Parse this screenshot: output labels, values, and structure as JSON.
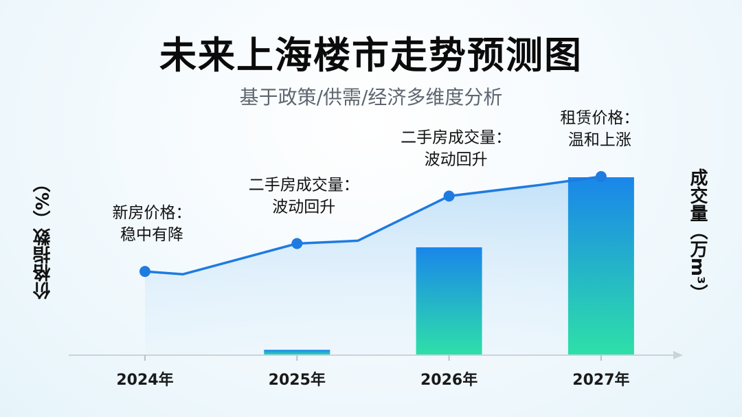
{
  "chart_data": {
    "type": "bar+line",
    "title": "未来上海楼市走势预测图",
    "subtitle": "基于政策/供需/经济多维度分析",
    "categories": [
      "2024年",
      "2025年",
      "2026年",
      "2027年"
    ],
    "ylabel_left": "价格指数（%）",
    "ylabel_right": "成交量（万m³）",
    "line": {
      "x": [
        0,
        0.25,
        1,
        1.4,
        2,
        2.6,
        3
      ],
      "values": [
        30,
        29,
        40,
        41,
        57,
        61,
        64
      ],
      "marker_indices": [
        0,
        2,
        4,
        6
      ],
      "color": "#1e7be0"
    },
    "bars": {
      "values": [
        0,
        2,
        40,
        66
      ],
      "color_top": "#1a86ea",
      "color_bottom": "#2ee0a8"
    },
    "annotations": [
      [
        "新房价格：",
        "稳中有降"
      ],
      [
        "二手房成交量：",
        "波动回升"
      ],
      [
        "二手房成交量：",
        "波动回升"
      ],
      [
        "租赁价格：",
        "温和上涨"
      ]
    ],
    "grid": false,
    "legend": "none"
  }
}
